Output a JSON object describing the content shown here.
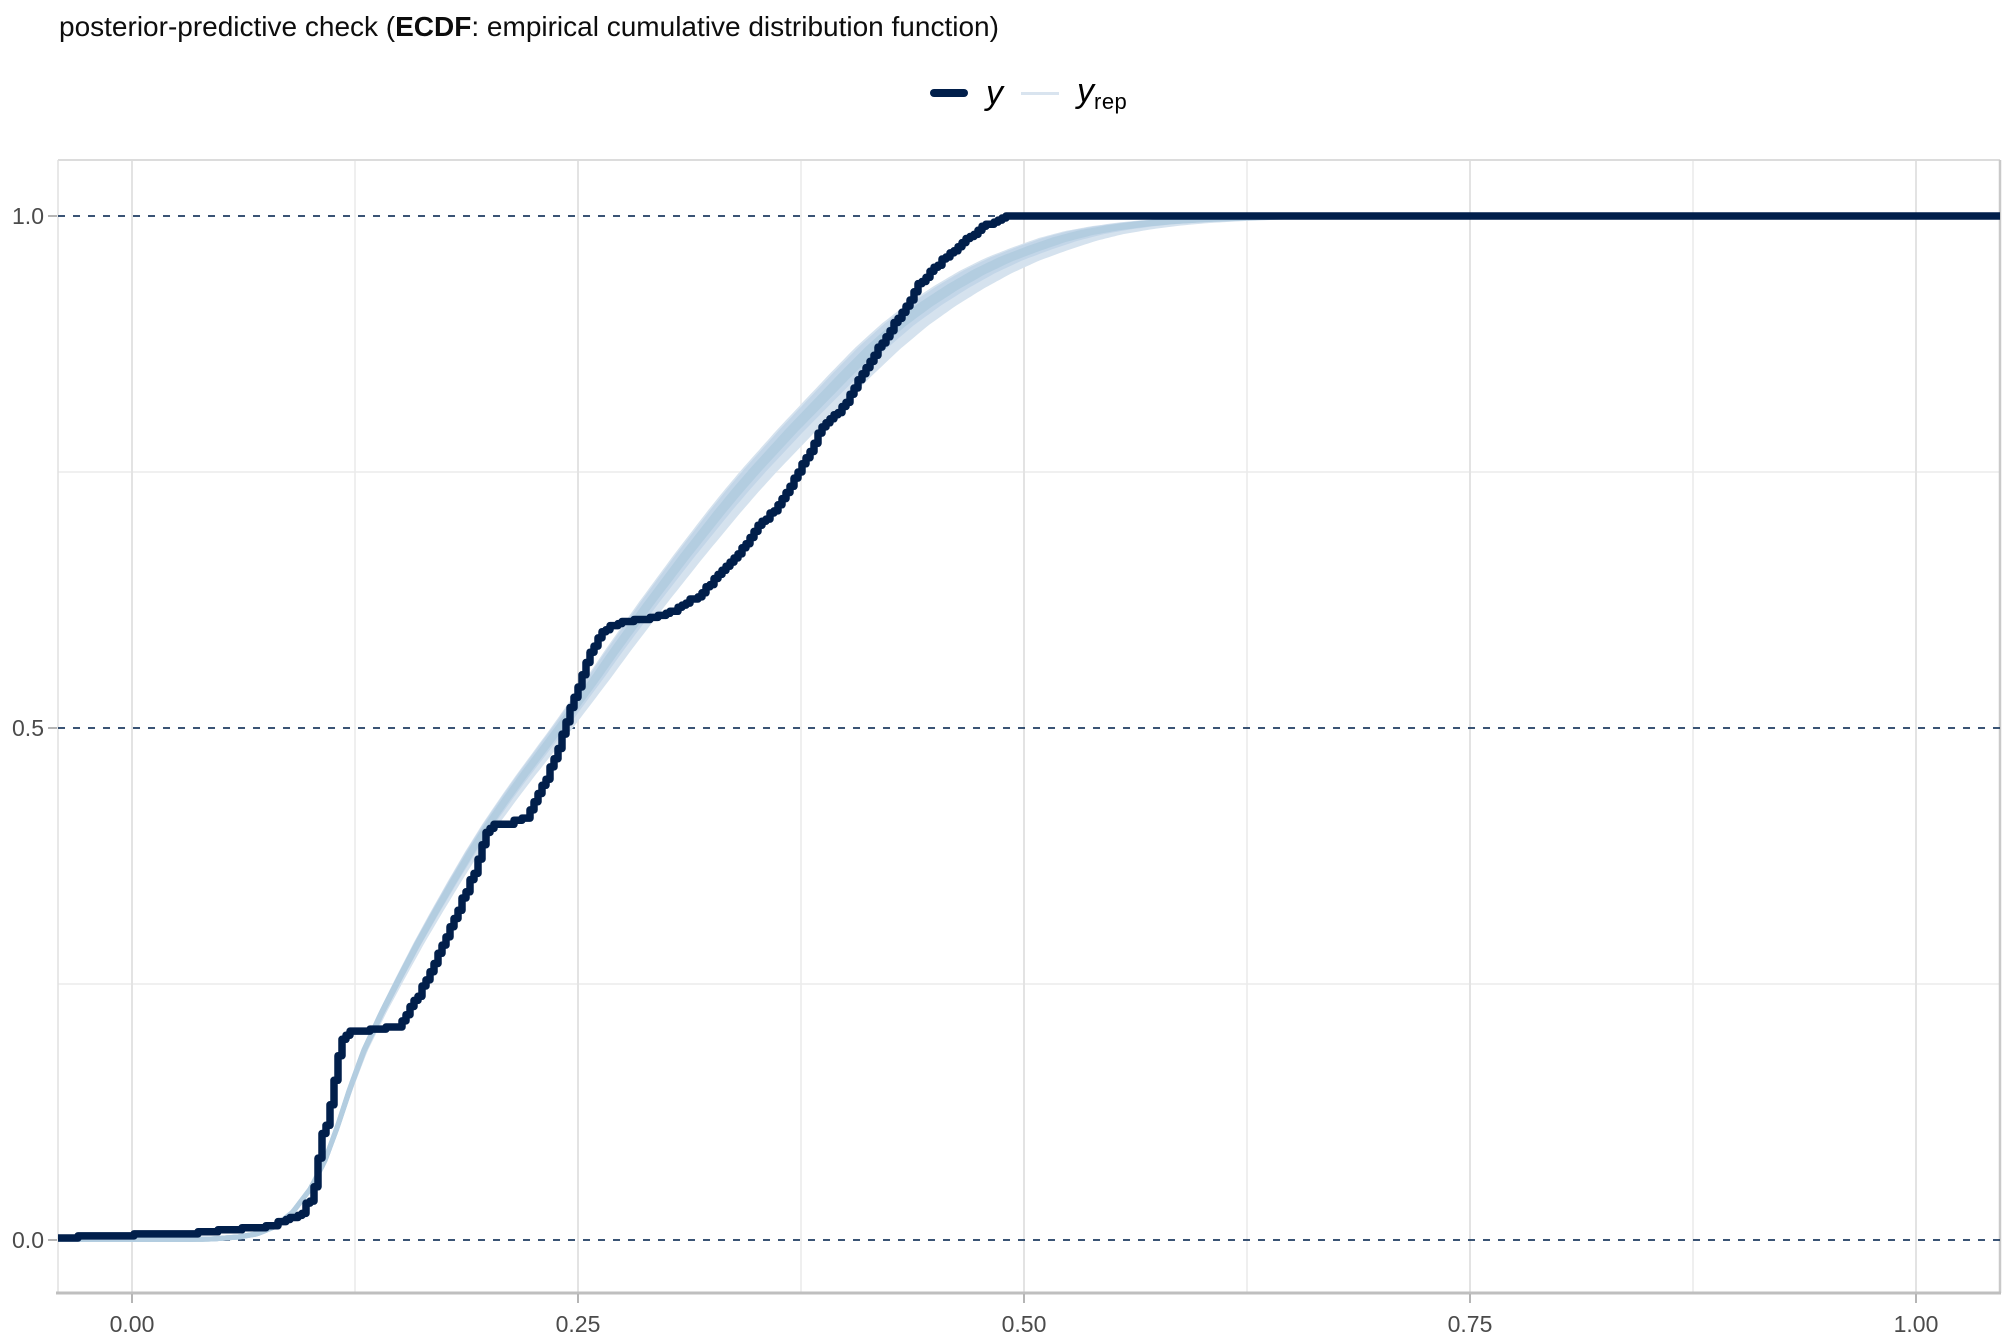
{
  "title": {
    "prefix": "posterior-predictive check (",
    "bold": "ECDF",
    "suffix": ": empirical cumulative distribution function)"
  },
  "legend": {
    "y_label": "y",
    "yrep_base": "y",
    "yrep_sub": "rep"
  },
  "colors": {
    "y_line": "#011f4b",
    "yrep_core": "#b3cde0",
    "yrep_mid": "#c3d6e8",
    "yrep_halo": "#d5e2ee",
    "dashed_line": "#1e3d62",
    "grid_major": "#e3e3e3",
    "grid_minor": "#ebebeb",
    "panel_border_top": "#dcdcdc",
    "panel_border_left": "#e0e0e0",
    "panel_border_right": "#c9c9c9",
    "axis_line_bottom": "#bfbfbf",
    "tick_mark": "#b5b5b5",
    "tick_label": "#4b4b4b"
  },
  "chart_data": {
    "type": "line",
    "subtype": "ecdf_overlay_posterior_predictive_check",
    "title": "posterior-predictive check (ECDF: empirical cumulative distribution function)",
    "legend_position": "top-center",
    "grid": true,
    "xlim": [
      -0.0415,
      1.047
    ],
    "ylim": [
      -0.052,
      1.055
    ],
    "x_axis": {
      "tick_values": [
        0,
        0.25,
        0.5,
        0.75,
        1.0
      ],
      "tick_labels": [
        "0.00",
        "0.25",
        "0.50",
        "0.75",
        "1.00"
      ],
      "minor_values": [
        0.125,
        0.375,
        0.625,
        0.875
      ]
    },
    "y_axis": {
      "tick_values": [
        0,
        0.5,
        1.0
      ],
      "tick_labels": [
        "0.0",
        "0.5",
        "1.0"
      ],
      "minor_values": [
        0.25,
        0.75
      ]
    },
    "dashed_hlines": [
      0,
      0.5,
      1.0
    ],
    "series": [
      {
        "name": "y",
        "style": "ecdf_step",
        "color": "#011f4b",
        "points": [
          [
            -0.0415,
            0.0015
          ],
          [
            -0.02,
            0.003
          ],
          [
            0.0,
            0.0045
          ],
          [
            0.02,
            0.006
          ],
          [
            0.04,
            0.007
          ],
          [
            0.055,
            0.009
          ],
          [
            0.061,
            0.0115
          ],
          [
            0.07,
            0.0125
          ],
          [
            0.08,
            0.014
          ],
          [
            0.0825,
            0.0165
          ],
          [
            0.085,
            0.021
          ],
          [
            0.09,
            0.0225
          ],
          [
            0.095,
            0.024
          ],
          [
            0.0965,
            0.0335
          ],
          [
            0.0985,
            0.036
          ],
          [
            0.1,
            0.039
          ],
          [
            0.1015,
            0.046
          ],
          [
            0.1025,
            0.056
          ],
          [
            0.1035,
            0.068
          ],
          [
            0.1045,
            0.082
          ],
          [
            0.1052,
            0.094
          ],
          [
            0.1058,
            0.1
          ],
          [
            0.1065,
            0.104
          ],
          [
            0.108,
            0.107
          ],
          [
            0.1092,
            0.114
          ],
          [
            0.1105,
            0.127
          ],
          [
            0.1118,
            0.141
          ],
          [
            0.113,
            0.154
          ],
          [
            0.1142,
            0.167
          ],
          [
            0.1154,
            0.179
          ],
          [
            0.1165,
            0.188
          ],
          [
            0.118,
            0.196
          ],
          [
            0.12,
            0.2
          ],
          [
            0.1225,
            0.2025
          ],
          [
            0.127,
            0.2035
          ],
          [
            0.133,
            0.2045
          ],
          [
            0.14,
            0.2055
          ],
          [
            0.1455,
            0.2065
          ],
          [
            0.1486,
            0.208
          ],
          [
            0.1513,
            0.2145
          ],
          [
            0.154,
            0.2205
          ],
          [
            0.1575,
            0.2315
          ],
          [
            0.161,
            0.2415
          ],
          [
            0.165,
            0.2555
          ],
          [
            0.169,
            0.269
          ],
          [
            0.173,
            0.2855
          ],
          [
            0.177,
            0.3005
          ],
          [
            0.181,
            0.3165
          ],
          [
            0.185,
            0.3325
          ],
          [
            0.189,
            0.349
          ],
          [
            0.192,
            0.36
          ],
          [
            0.194,
            0.372
          ],
          [
            0.196,
            0.3855
          ],
          [
            0.198,
            0.396
          ],
          [
            0.2,
            0.403
          ],
          [
            0.205,
            0.406
          ],
          [
            0.21,
            0.4075
          ],
          [
            0.2155,
            0.409
          ],
          [
            0.2215,
            0.4135
          ],
          [
            0.2245,
            0.4245
          ],
          [
            0.228,
            0.438
          ],
          [
            0.232,
            0.4515
          ],
          [
            0.236,
            0.4685
          ],
          [
            0.2395,
            0.4845
          ],
          [
            0.242,
            0.501
          ],
          [
            0.2455,
            0.518
          ],
          [
            0.249,
            0.536
          ],
          [
            0.2525,
            0.5525
          ],
          [
            0.256,
            0.5705
          ],
          [
            0.2595,
            0.5835
          ],
          [
            0.263,
            0.592
          ],
          [
            0.2665,
            0.5985
          ],
          [
            0.2707,
            0.602
          ],
          [
            0.2785,
            0.6045
          ],
          [
            0.2847,
            0.6055
          ],
          [
            0.291,
            0.608
          ],
          [
            0.296,
            0.6105
          ],
          [
            0.3044,
            0.6155
          ],
          [
            0.31,
            0.622
          ],
          [
            0.3156,
            0.627
          ],
          [
            0.321,
            0.635
          ],
          [
            0.3268,
            0.6465
          ],
          [
            0.332,
            0.657
          ],
          [
            0.337,
            0.6655
          ],
          [
            0.3425,
            0.6765
          ],
          [
            0.3475,
            0.6885
          ],
          [
            0.3525,
            0.7005
          ],
          [
            0.357,
            0.7085
          ],
          [
            0.3615,
            0.716
          ],
          [
            0.366,
            0.7285
          ],
          [
            0.3705,
            0.7425
          ],
          [
            0.374,
            0.7525
          ],
          [
            0.3775,
            0.7625
          ],
          [
            0.381,
            0.7735
          ],
          [
            0.3845,
            0.7865
          ],
          [
            0.3875,
            0.7965
          ],
          [
            0.392,
            0.8025
          ],
          [
            0.3965,
            0.8085
          ],
          [
            0.401,
            0.8205
          ],
          [
            0.405,
            0.8345
          ],
          [
            0.41,
            0.8485
          ],
          [
            0.4145,
            0.8605
          ],
          [
            0.419,
            0.8725
          ],
          [
            0.4235,
            0.8845
          ],
          [
            0.428,
            0.8965
          ],
          [
            0.4325,
            0.9085
          ],
          [
            0.4365,
            0.9205
          ],
          [
            0.4405,
            0.9325
          ],
          [
            0.4445,
            0.9405
          ],
          [
            0.449,
            0.9485
          ],
          [
            0.4535,
            0.9555
          ],
          [
            0.458,
            0.9625
          ],
          [
            0.4625,
            0.9695
          ],
          [
            0.467,
            0.9765
          ],
          [
            0.4715,
            0.9825
          ],
          [
            0.476,
            0.9885
          ],
          [
            0.4805,
            0.9925
          ],
          [
            0.485,
            0.9965
          ],
          [
            0.49,
            1.0
          ],
          [
            1.047,
            1.0
          ]
        ]
      },
      {
        "name": "y_rep",
        "style": "smooth_bundle",
        "color": "#b3cde0",
        "n_rep": 16,
        "points": [
          [
            -0.0415,
            0.0005
          ],
          [
            0.03,
            0.0005
          ],
          [
            0.045,
            0.001
          ],
          [
            0.06,
            0.003
          ],
          [
            0.07,
            0.006
          ],
          [
            0.08,
            0.013
          ],
          [
            0.09,
            0.027
          ],
          [
            0.1,
            0.05
          ],
          [
            0.108,
            0.077
          ],
          [
            0.115,
            0.11
          ],
          [
            0.122,
            0.147
          ],
          [
            0.13,
            0.185
          ],
          [
            0.14,
            0.222
          ],
          [
            0.15,
            0.256
          ],
          [
            0.16,
            0.289
          ],
          [
            0.17,
            0.32
          ],
          [
            0.18,
            0.35
          ],
          [
            0.19,
            0.379
          ],
          [
            0.2,
            0.406
          ],
          [
            0.21,
            0.431
          ],
          [
            0.22,
            0.455
          ],
          [
            0.23,
            0.478
          ],
          [
            0.24,
            0.501
          ],
          [
            0.25,
            0.525
          ],
          [
            0.26,
            0.549
          ],
          [
            0.27,
            0.574
          ],
          [
            0.28,
            0.598
          ],
          [
            0.29,
            0.622
          ],
          [
            0.3,
            0.645
          ],
          [
            0.31,
            0.668
          ],
          [
            0.32,
            0.69
          ],
          [
            0.33,
            0.712
          ],
          [
            0.34,
            0.733
          ],
          [
            0.35,
            0.753
          ],
          [
            0.36,
            0.772
          ],
          [
            0.37,
            0.791
          ],
          [
            0.385,
            0.818
          ],
          [
            0.4,
            0.845
          ],
          [
            0.415,
            0.871
          ],
          [
            0.43,
            0.894
          ],
          [
            0.445,
            0.9135
          ],
          [
            0.46,
            0.9305
          ],
          [
            0.475,
            0.9455
          ],
          [
            0.49,
            0.958
          ],
          [
            0.505,
            0.968
          ],
          [
            0.52,
            0.977
          ],
          [
            0.535,
            0.9838
          ],
          [
            0.55,
            0.9885
          ],
          [
            0.565,
            0.992
          ],
          [
            0.58,
            0.9945
          ],
          [
            0.6,
            0.9966
          ],
          [
            0.62,
            0.998
          ],
          [
            0.64,
            0.9991
          ],
          [
            0.66,
            0.9996
          ],
          [
            0.69,
            1.0
          ],
          [
            1.047,
            1.0
          ]
        ]
      }
    ]
  }
}
